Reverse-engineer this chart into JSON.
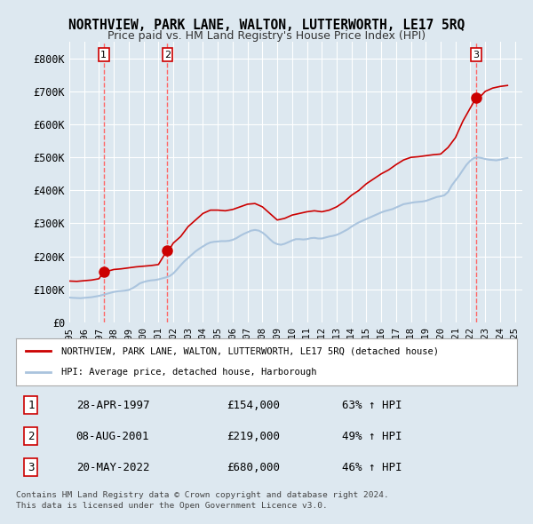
{
  "title": "NORTHVIEW, PARK LANE, WALTON, LUTTERWORTH, LE17 5RQ",
  "subtitle": "Price paid vs. HM Land Registry's House Price Index (HPI)",
  "bg_color": "#dde8f0",
  "plot_bg_color": "#dde8f0",
  "ylabel": "",
  "ylim": [
    0,
    850000
  ],
  "yticks": [
    0,
    100000,
    200000,
    300000,
    400000,
    500000,
    600000,
    700000,
    800000
  ],
  "ytick_labels": [
    "£0",
    "£100K",
    "£200K",
    "£300K",
    "£400K",
    "£500K",
    "£600K",
    "£700K",
    "£800K"
  ],
  "xmin": 1995.0,
  "xmax": 2025.5,
  "hpi_color": "#aac4de",
  "price_color": "#cc0000",
  "sale_marker_color": "#cc0000",
  "dashed_line_color": "#ff6666",
  "transactions": [
    {
      "label": "1",
      "date_str": "28-APR-1997",
      "date_num": 1997.32,
      "price": 154000,
      "pct": "63%",
      "dir": "↑"
    },
    {
      "label": "2",
      "date_str": "08-AUG-2001",
      "date_num": 2001.6,
      "price": 219000,
      "pct": "49%",
      "dir": "↑"
    },
    {
      "label": "3",
      "date_str": "20-MAY-2022",
      "date_num": 2022.38,
      "price": 680000,
      "pct": "46%",
      "dir": "↑"
    }
  ],
  "legend_line1": "NORTHVIEW, PARK LANE, WALTON, LUTTERWORTH, LE17 5RQ (detached house)",
  "legend_line2": "HPI: Average price, detached house, Harborough",
  "footer1": "Contains HM Land Registry data © Crown copyright and database right 2024.",
  "footer2": "This data is licensed under the Open Government Licence v3.0.",
  "hpi_data": {
    "years": [
      1995.0,
      1995.25,
      1995.5,
      1995.75,
      1996.0,
      1996.25,
      1996.5,
      1996.75,
      1997.0,
      1997.25,
      1997.5,
      1997.75,
      1998.0,
      1998.25,
      1998.5,
      1998.75,
      1999.0,
      1999.25,
      1999.5,
      1999.75,
      2000.0,
      2000.25,
      2000.5,
      2000.75,
      2001.0,
      2001.25,
      2001.5,
      2001.75,
      2002.0,
      2002.25,
      2002.5,
      2002.75,
      2003.0,
      2003.25,
      2003.5,
      2003.75,
      2004.0,
      2004.25,
      2004.5,
      2004.75,
      2005.0,
      2005.25,
      2005.5,
      2005.75,
      2006.0,
      2006.25,
      2006.5,
      2006.75,
      2007.0,
      2007.25,
      2007.5,
      2007.75,
      2008.0,
      2008.25,
      2008.5,
      2008.75,
      2009.0,
      2009.25,
      2009.5,
      2009.75,
      2010.0,
      2010.25,
      2010.5,
      2010.75,
      2011.0,
      2011.25,
      2011.5,
      2011.75,
      2012.0,
      2012.25,
      2012.5,
      2012.75,
      2013.0,
      2013.25,
      2013.5,
      2013.75,
      2014.0,
      2014.25,
      2014.5,
      2014.75,
      2015.0,
      2015.25,
      2015.5,
      2015.75,
      2016.0,
      2016.25,
      2016.5,
      2016.75,
      2017.0,
      2017.25,
      2017.5,
      2017.75,
      2018.0,
      2018.25,
      2018.5,
      2018.75,
      2019.0,
      2019.25,
      2019.5,
      2019.75,
      2020.0,
      2020.25,
      2020.5,
      2020.75,
      2021.0,
      2021.25,
      2021.5,
      2021.75,
      2022.0,
      2022.25,
      2022.5,
      2022.75,
      2023.0,
      2023.25,
      2023.5,
      2023.75,
      2024.0,
      2024.25,
      2024.5
    ],
    "values": [
      75000,
      74000,
      73500,
      73000,
      74000,
      75000,
      76000,
      78000,
      80000,
      83000,
      86000,
      89000,
      92000,
      94000,
      95000,
      96000,
      98000,
      103000,
      110000,
      118000,
      122000,
      125000,
      127000,
      128000,
      130000,
      133000,
      136000,
      140000,
      148000,
      160000,
      173000,
      185000,
      195000,
      205000,
      215000,
      223000,
      230000,
      237000,
      242000,
      244000,
      245000,
      246000,
      246000,
      247000,
      250000,
      255000,
      262000,
      268000,
      273000,
      278000,
      280000,
      278000,
      272000,
      263000,
      252000,
      242000,
      237000,
      235000,
      238000,
      243000,
      248000,
      252000,
      252000,
      251000,
      252000,
      255000,
      256000,
      254000,
      254000,
      257000,
      260000,
      262000,
      265000,
      270000,
      276000,
      282000,
      290000,
      297000,
      303000,
      308000,
      313000,
      318000,
      323000,
      328000,
      333000,
      337000,
      340000,
      343000,
      348000,
      353000,
      358000,
      360000,
      362000,
      364000,
      365000,
      366000,
      368000,
      372000,
      376000,
      380000,
      382000,
      385000,
      395000,
      415000,
      430000,
      445000,
      462000,
      478000,
      490000,
      498000,
      500000,
      498000,
      495000,
      493000,
      492000,
      491000,
      493000,
      496000,
      498000
    ]
  },
  "price_line_data": {
    "years": [
      1995.0,
      1995.5,
      1996.0,
      1996.5,
      1997.0,
      1997.32,
      1997.5,
      1997.75,
      1998.0,
      1998.5,
      1999.0,
      1999.5,
      2000.0,
      2000.5,
      2001.0,
      2001.6,
      2001.75,
      2002.0,
      2002.5,
      2003.0,
      2003.5,
      2004.0,
      2004.5,
      2005.0,
      2005.5,
      2006.0,
      2006.5,
      2007.0,
      2007.5,
      2008.0,
      2008.5,
      2009.0,
      2009.5,
      2010.0,
      2010.5,
      2011.0,
      2011.5,
      2012.0,
      2012.5,
      2013.0,
      2013.5,
      2014.0,
      2014.5,
      2015.0,
      2015.5,
      2016.0,
      2016.5,
      2017.0,
      2017.5,
      2018.0,
      2018.5,
      2019.0,
      2019.5,
      2020.0,
      2020.5,
      2021.0,
      2021.5,
      2022.0,
      2022.38,
      2022.5,
      2022.75,
      2023.0,
      2023.5,
      2024.0,
      2024.5
    ],
    "values": [
      125000,
      124000,
      126000,
      128000,
      132000,
      154000,
      155000,
      157000,
      160000,
      162000,
      165000,
      168000,
      170000,
      172000,
      175000,
      219000,
      222000,
      240000,
      260000,
      290000,
      310000,
      330000,
      340000,
      340000,
      338000,
      342000,
      350000,
      358000,
      360000,
      350000,
      330000,
      310000,
      315000,
      325000,
      330000,
      335000,
      338000,
      335000,
      340000,
      350000,
      365000,
      385000,
      400000,
      420000,
      435000,
      450000,
      462000,
      478000,
      492000,
      500000,
      502000,
      505000,
      508000,
      510000,
      530000,
      560000,
      610000,
      650000,
      680000,
      685000,
      688000,
      700000,
      710000,
      715000,
      718000
    ]
  }
}
